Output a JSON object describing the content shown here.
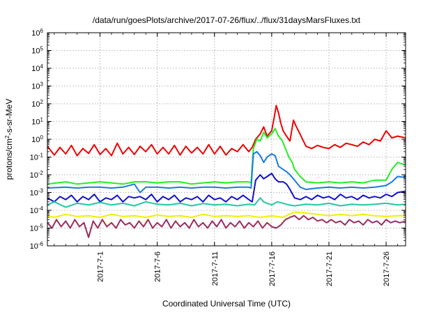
{
  "chart_data": {
    "type": "line",
    "title": "/data/run/goesPlots/archive/2017-07-26/flux/../flux/31daysMarsFluxes.txt",
    "xlabel": "Coordinated Universal Time (UTC)",
    "ylabel": "protons/cm2-s-sr-MeV",
    "ylabel_parts": {
      "pre": "protons/cm",
      "sup": "2",
      "post": "-s-sr-MeV"
    },
    "yscale": "log",
    "ylim_exp": [
      -6,
      6
    ],
    "xlim_days": [
      -3.6,
      27.7
    ],
    "grid": true,
    "legend": "none",
    "y_ticks": [
      {
        "exp": -6,
        "base": "10",
        "sup": "-6"
      },
      {
        "exp": -5,
        "base": "10",
        "sup": "-5"
      },
      {
        "exp": -4,
        "base": "10",
        "sup": "-4"
      },
      {
        "exp": -3,
        "base": "10",
        "sup": "-3"
      },
      {
        "exp": -2,
        "base": "10",
        "sup": "-2"
      },
      {
        "exp": -1,
        "base": "10",
        "sup": "-1"
      },
      {
        "exp": 0,
        "base": "10",
        "sup": "0"
      },
      {
        "exp": 1,
        "base": "10",
        "sup": "1"
      },
      {
        "exp": 2,
        "base": "10",
        "sup": "2"
      },
      {
        "exp": 3,
        "base": "10",
        "sup": "3"
      },
      {
        "exp": 4,
        "base": "10",
        "sup": "4"
      },
      {
        "exp": 5,
        "base": "10",
        "sup": "5"
      },
      {
        "exp": 6,
        "base": "10",
        "sup": "6"
      }
    ],
    "x_ticks": [
      {
        "day": 1,
        "label": "2017-7-1"
      },
      {
        "day": 6,
        "label": "2017-7-6"
      },
      {
        "day": 11,
        "label": "2017-7-11"
      },
      {
        "day": 16,
        "label": "2017-7-16"
      },
      {
        "day": 21,
        "label": "2017-7-21"
      },
      {
        "day": 26,
        "label": "2017-7-26"
      }
    ],
    "series": [
      {
        "color": "#ee0000",
        "x": [
          -3.6,
          -3.0,
          -2.5,
          -2.0,
          -1.5,
          -1.0,
          -0.5,
          0.0,
          0.5,
          1.0,
          1.5,
          2.0,
          2.5,
          3.0,
          3.5,
          4.0,
          4.5,
          5.0,
          5.5,
          6.0,
          6.5,
          7.0,
          7.5,
          8.0,
          8.5,
          9.0,
          9.5,
          10.0,
          10.5,
          11.0,
          11.5,
          12.0,
          12.5,
          13.0,
          13.5,
          14.0,
          14.3,
          14.6,
          15.0,
          15.3,
          15.6,
          16.0,
          16.2,
          16.4,
          16.6,
          16.8,
          17.0,
          17.3,
          17.6,
          17.9,
          18.1,
          18.4,
          18.7,
          19.0,
          19.5,
          20.0,
          20.5,
          21.0,
          21.5,
          22.0,
          22.5,
          23.0,
          23.5,
          24.0,
          24.5,
          25.0,
          25.5,
          26.0,
          26.5,
          27.0,
          27.7
        ],
        "y": [
          0.4,
          0.13,
          0.35,
          0.15,
          0.45,
          0.12,
          0.3,
          0.16,
          0.5,
          0.14,
          0.3,
          0.12,
          0.6,
          0.15,
          0.35,
          0.14,
          0.4,
          0.2,
          0.5,
          0.15,
          0.35,
          0.15,
          0.45,
          0.13,
          0.4,
          0.17,
          0.35,
          0.15,
          0.5,
          0.15,
          0.4,
          0.13,
          0.3,
          0.2,
          0.5,
          0.2,
          0.35,
          1.0,
          2.0,
          5.0,
          1.5,
          3.0,
          15.0,
          80.0,
          30.0,
          8.0,
          3.0,
          1.5,
          0.8,
          12.0,
          6.0,
          2.5,
          1.0,
          0.4,
          0.3,
          0.45,
          0.35,
          0.3,
          0.5,
          0.35,
          0.6,
          0.5,
          0.4,
          0.7,
          0.5,
          1.0,
          0.8,
          3.0,
          1.2,
          1.5,
          1.2
        ]
      },
      {
        "color": "#22ee22",
        "x": [
          -3.6,
          -2.0,
          -1.0,
          0.0,
          1.0,
          2.0,
          3.0,
          4.0,
          5.0,
          6.0,
          7.0,
          8.0,
          9.0,
          10.0,
          11.0,
          12.0,
          13.0,
          14.0,
          14.2,
          14.4,
          14.7,
          15.0,
          15.3,
          15.6,
          16.0,
          16.3,
          16.6,
          16.9,
          17.2,
          17.5,
          17.8,
          18.0,
          18.5,
          19.0,
          20.0,
          21.0,
          22.0,
          23.0,
          24.0,
          25.0,
          26.0,
          26.5,
          27.0,
          27.7
        ],
        "y": [
          0.003,
          0.004,
          0.003,
          0.0035,
          0.004,
          0.0035,
          0.003,
          0.004,
          0.004,
          0.0035,
          0.004,
          0.004,
          0.003,
          0.0035,
          0.004,
          0.0035,
          0.004,
          0.004,
          0.0035,
          0.3,
          1.0,
          0.8,
          2.5,
          1.2,
          2.0,
          4.0,
          1.5,
          0.9,
          0.3,
          0.1,
          0.05,
          0.02,
          0.008,
          0.004,
          0.0035,
          0.004,
          0.0035,
          0.004,
          0.0035,
          0.005,
          0.005,
          0.02,
          0.05,
          0.035
        ]
      },
      {
        "color": "#1a7ae0",
        "x": [
          -3.6,
          -2.0,
          -1.0,
          0.0,
          1.0,
          2.0,
          3.0,
          4.0,
          4.5,
          5.0,
          6.0,
          7.0,
          8.0,
          9.0,
          10.0,
          11.0,
          12.0,
          13.0,
          14.0,
          14.2,
          14.4,
          14.7,
          15.0,
          15.3,
          15.6,
          16.0,
          16.3,
          16.6,
          17.0,
          17.3,
          17.6,
          18.0,
          18.5,
          19.0,
          20.0,
          21.0,
          22.0,
          23.0,
          24.0,
          25.0,
          26.0,
          26.5,
          27.0,
          27.7
        ],
        "y": [
          0.0018,
          0.002,
          0.0018,
          0.002,
          0.002,
          0.0018,
          0.002,
          0.003,
          0.001,
          0.002,
          0.002,
          0.0018,
          0.002,
          0.0018,
          0.002,
          0.002,
          0.0018,
          0.002,
          0.002,
          0.0018,
          0.15,
          0.2,
          0.12,
          0.05,
          0.1,
          0.15,
          0.12,
          0.03,
          0.02,
          0.015,
          0.01,
          0.005,
          0.002,
          0.0015,
          0.0018,
          0.002,
          0.0018,
          0.002,
          0.0018,
          0.002,
          0.0025,
          0.004,
          0.008,
          0.007
        ]
      },
      {
        "color": "#1010cc",
        "x": [
          -3.6,
          -3.0,
          -2.5,
          -2.0,
          -1.5,
          -1.0,
          -0.5,
          0.0,
          0.5,
          1.0,
          1.5,
          2.0,
          2.5,
          3.0,
          3.5,
          4.0,
          4.5,
          5.0,
          5.5,
          6.0,
          6.5,
          7.0,
          7.5,
          8.0,
          8.5,
          9.0,
          9.5,
          10.0,
          10.5,
          11.0,
          11.5,
          12.0,
          12.5,
          13.0,
          13.5,
          14.0,
          14.3,
          14.6,
          15.0,
          15.3,
          15.6,
          16.0,
          16.3,
          16.6,
          17.0,
          17.3,
          17.6,
          18.0,
          18.5,
          19.0,
          19.5,
          20.0,
          20.5,
          21.0,
          21.5,
          22.0,
          22.5,
          23.0,
          23.5,
          24.0,
          24.5,
          25.0,
          25.5,
          26.0,
          26.5,
          27.0,
          27.7
        ],
        "y": [
          0.0005,
          0.0003,
          0.0006,
          0.0004,
          0.0007,
          0.0003,
          0.0006,
          0.0004,
          0.0008,
          0.0003,
          0.0005,
          0.0004,
          0.0007,
          0.0003,
          0.0006,
          0.0005,
          0.0006,
          0.0004,
          0.0008,
          0.0003,
          0.0006,
          0.0004,
          0.0007,
          0.0003,
          0.0005,
          0.0004,
          0.0006,
          0.0003,
          0.0007,
          0.0004,
          0.0005,
          0.0003,
          0.0006,
          0.0004,
          0.0007,
          0.0004,
          0.0003,
          0.005,
          0.01,
          0.006,
          0.008,
          0.012,
          0.006,
          0.004,
          0.004,
          0.003,
          0.0015,
          0.0005,
          0.0004,
          0.0006,
          0.0004,
          0.0007,
          0.0005,
          0.0006,
          0.0004,
          0.0008,
          0.0005,
          0.0006,
          0.0004,
          0.0007,
          0.0005,
          0.0006,
          0.0005,
          0.0008,
          0.0006,
          0.001,
          0.0012
        ]
      },
      {
        "color": "#22c8a0",
        "x": [
          -3.6,
          -3.0,
          -2.0,
          -1.0,
          0.0,
          1.0,
          2.0,
          3.0,
          4.0,
          5.0,
          6.0,
          7.0,
          8.0,
          9.0,
          10.0,
          11.0,
          12.0,
          13.0,
          14.0,
          14.5,
          15.0,
          15.3,
          15.6,
          16.0,
          16.5,
          17.0,
          17.5,
          18.0,
          19.0,
          20.0,
          21.0,
          22.0,
          23.0,
          24.0,
          25.0,
          26.0,
          27.0,
          27.7
        ],
        "y": [
          0.0002,
          0.0003,
          0.00015,
          0.00025,
          0.0002,
          0.00028,
          0.0002,
          0.00025,
          0.00018,
          0.0003,
          0.00022,
          0.0002,
          0.00025,
          0.00018,
          0.00024,
          0.0002,
          0.00022,
          0.00018,
          0.00022,
          0.0002,
          0.0005,
          0.0003,
          0.00025,
          0.0002,
          0.0003,
          0.00025,
          0.0002,
          0.00018,
          0.00022,
          0.0002,
          0.00025,
          0.00018,
          0.00022,
          0.0002,
          0.00022,
          0.00025,
          0.0002,
          0.00022
        ]
      },
      {
        "color": "#f0f000",
        "x": [
          -3.6,
          -3.0,
          -2.0,
          -1.0,
          0.0,
          1.0,
          2.0,
          3.0,
          4.0,
          5.0,
          6.0,
          7.0,
          8.0,
          9.0,
          10.0,
          11.0,
          12.0,
          13.0,
          14.0,
          15.0,
          16.0,
          17.0,
          17.5,
          18.0,
          19.0,
          20.0,
          21.0,
          22.0,
          23.0,
          24.0,
          25.0,
          26.0,
          27.0,
          27.7
        ],
        "y": [
          5e-05,
          4e-05,
          6e-05,
          4.5e-05,
          5e-05,
          4e-05,
          6e-05,
          4.5e-05,
          5e-05,
          4e-05,
          5.5e-05,
          4.5e-05,
          5e-05,
          4e-05,
          6e-05,
          4.5e-05,
          5e-05,
          4.5e-05,
          5e-05,
          4e-05,
          5e-05,
          4e-05,
          6e-05,
          8e-05,
          7e-05,
          6e-05,
          5e-05,
          6e-05,
          5e-05,
          6e-05,
          5e-05,
          4.5e-05,
          5e-05,
          5e-05
        ]
      },
      {
        "color": "#9b2c5a",
        "x": [
          -3.6,
          -3.2,
          -2.8,
          -2.4,
          -2.0,
          -1.6,
          -1.2,
          -0.8,
          -0.4,
          0.0,
          0.4,
          0.8,
          1.2,
          1.6,
          2.0,
          2.4,
          2.8,
          3.2,
          3.6,
          4.0,
          4.4,
          4.8,
          5.2,
          5.6,
          6.0,
          6.4,
          6.8,
          7.2,
          7.6,
          8.0,
          8.4,
          8.8,
          9.2,
          9.6,
          10.0,
          10.4,
          10.8,
          11.2,
          11.6,
          12.0,
          12.4,
          12.8,
          13.2,
          13.6,
          14.0,
          14.4,
          14.8,
          15.2,
          15.6,
          16.0,
          16.4,
          16.8,
          17.2,
          17.6,
          18.0,
          18.4,
          18.8,
          19.2,
          19.6,
          20.0,
          20.4,
          20.8,
          21.2,
          21.6,
          22.0,
          22.4,
          22.8,
          23.2,
          23.6,
          24.0,
          24.4,
          24.8,
          25.2,
          25.6,
          26.0,
          26.4,
          26.8,
          27.2,
          27.7
        ],
        "y": [
          2e-05,
          1e-05,
          3e-05,
          1.2e-05,
          2.5e-05,
          1e-05,
          3e-05,
          1.2e-05,
          2e-05,
          3e-06,
          2.5e-05,
          1e-05,
          3e-05,
          1.2e-05,
          2e-05,
          1e-05,
          3e-05,
          1.5e-05,
          2e-05,
          1e-05,
          2.5e-05,
          1.2e-05,
          3e-05,
          1e-05,
          2e-05,
          1.2e-05,
          3e-05,
          1e-05,
          2.5e-05,
          1.2e-05,
          2e-05,
          1e-05,
          3e-05,
          1.2e-05,
          2e-05,
          1e-05,
          2.5e-05,
          1.2e-05,
          3e-05,
          1e-05,
          2e-05,
          1.2e-05,
          2.5e-05,
          1e-05,
          2e-05,
          1.2e-05,
          2.5e-05,
          1e-05,
          2e-05,
          1.2e-05,
          1e-05,
          1.5e-05,
          3e-05,
          4e-05,
          5e-05,
          3e-05,
          5e-05,
          3e-05,
          4e-05,
          2.5e-05,
          3e-05,
          2e-05,
          3e-05,
          2e-05,
          2.5e-05,
          1.5e-05,
          3e-05,
          2e-05,
          2.5e-05,
          1.5e-05,
          3e-05,
          2e-05,
          2.5e-05,
          1.5e-05,
          3e-05,
          2e-05,
          2.5e-05,
          2e-05,
          2.5e-05
        ]
      }
    ]
  }
}
